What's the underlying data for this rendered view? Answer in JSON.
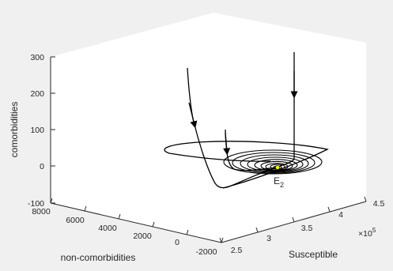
{
  "chart_data": {
    "type": "line",
    "projection": "3d",
    "axes": {
      "x": {
        "label": "Susceptible",
        "ticks": [
          "2.5",
          "3",
          "3.5",
          "4",
          "4.5"
        ],
        "tick_values": [
          2.5,
          3,
          3.5,
          4,
          4.5
        ],
        "range": [
          2.5,
          4.5
        ],
        "multiplier": "×10",
        "multiplier_exp": "5"
      },
      "y": {
        "label": "non-comorbidities",
        "ticks": [
          "-2000",
          "0",
          "2000",
          "4000",
          "6000",
          "8000"
        ],
        "tick_values": [
          -2000,
          0,
          2000,
          4000,
          6000,
          8000
        ],
        "range": [
          -2000,
          8000
        ]
      },
      "z": {
        "label": "comorbidities",
        "ticks": [
          "-100",
          "0",
          "100",
          "200",
          "300"
        ],
        "tick_values": [
          -100,
          0,
          100,
          200,
          300
        ],
        "range": [
          -100,
          300
        ]
      }
    },
    "background_color": "#ffffff",
    "line_color": "#000000",
    "equilibrium": {
      "label": "E",
      "subscript": "2",
      "color": "#ffff00"
    },
    "grid": false,
    "legend": false,
    "series": [
      {
        "description": "left arrow trajectory descending into spiral",
        "points": "trajectory"
      },
      {
        "description": "central arrow trajectory",
        "points": "trajectory"
      },
      {
        "description": "right vertical arrow trajectory",
        "points": "trajectory"
      },
      {
        "description": "outer loop and damped spiral around E2",
        "points": "trajectory"
      }
    ]
  }
}
